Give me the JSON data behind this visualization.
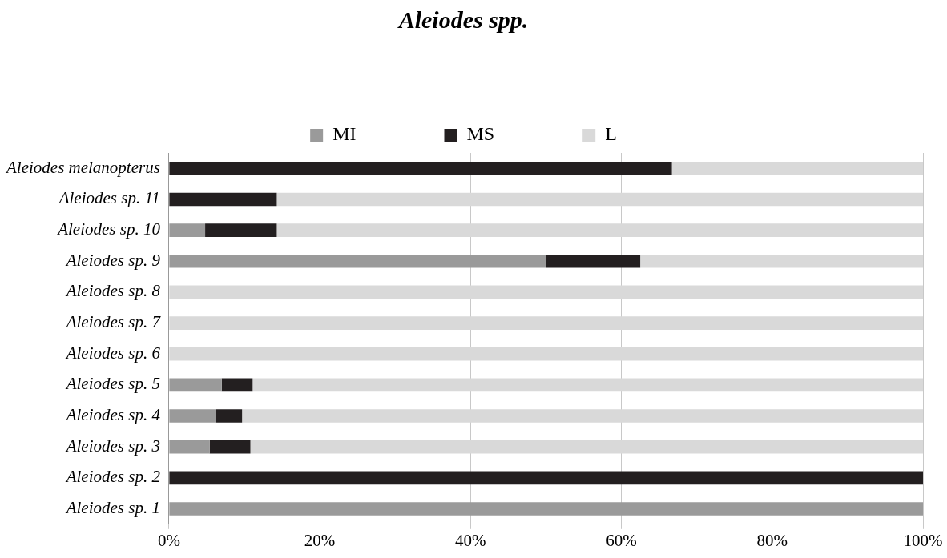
{
  "chart_data": {
    "type": "bar",
    "orientation": "horizontal",
    "stacked": true,
    "title": "Aleiodes spp.",
    "categories": [
      "Aleiodes melanopterus",
      "Aleiodes sp. 11",
      "Aleiodes sp. 10",
      "Aleiodes sp. 9",
      "Aleiodes sp. 8",
      "Aleiodes sp. 7",
      "Aleiodes sp. 6",
      "Aleiodes sp. 5",
      "Aleiodes sp. 4",
      "Aleiodes sp. 3",
      "Aleiodes sp. 2",
      "Aleiodes sp. 1"
    ],
    "series": [
      {
        "name": "MI",
        "color": "#9a9a9a",
        "values": [
          0,
          0,
          4.8,
          50,
          0,
          0,
          0,
          7,
          6.2,
          5.4,
          0,
          100
        ]
      },
      {
        "name": "MS",
        "color": "#231f20",
        "values": [
          66.7,
          14.3,
          9.5,
          12.5,
          0,
          0,
          0,
          4.1,
          3.5,
          5.4,
          100,
          0
        ]
      },
      {
        "name": "L",
        "color": "#d9d9d9",
        "values": [
          33.3,
          85.7,
          85.7,
          37.5,
          100,
          100,
          100,
          88.9,
          90.3,
          89.2,
          0,
          0
        ]
      }
    ],
    "xlim": [
      0,
      100
    ],
    "xticks": [
      {
        "value": 0,
        "label": "0%"
      },
      {
        "value": 20,
        "label": "20%"
      },
      {
        "value": 40,
        "label": "40%"
      },
      {
        "value": 60,
        "label": "60%"
      },
      {
        "value": 80,
        "label": "80%"
      },
      {
        "value": 100,
        "label": "100%"
      }
    ],
    "grid": "x",
    "legend": "top"
  }
}
